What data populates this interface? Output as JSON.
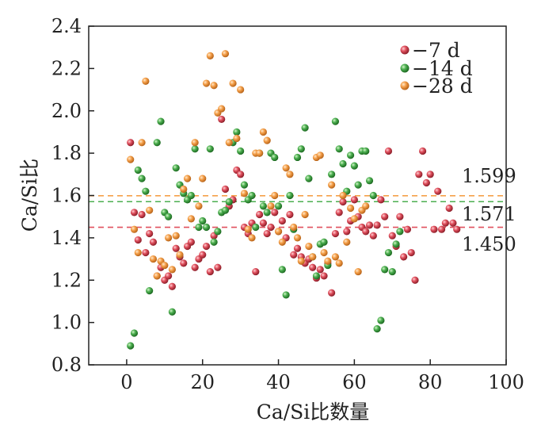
{
  "chart_data": {
    "type": "scatter",
    "title": "",
    "xlabel": "Ca/Si比数量",
    "ylabel": "Ca/Si比",
    "xlim": [
      -10,
      100
    ],
    "ylim": [
      0.8,
      2.4
    ],
    "xticks": [
      "0",
      "20",
      "40",
      "60",
      "80",
      "100"
    ],
    "yticks": [
      "0.8",
      "1.0",
      "1.2",
      "1.4",
      "1.6",
      "1.8",
      "2.0",
      "2.2",
      "2.4"
    ],
    "grid": false,
    "legend_position": "top-right",
    "reference_lines": [
      {
        "value": 1.599,
        "label": "1.599",
        "color": "#f5a04a"
      },
      {
        "value": 1.571,
        "label": "1.571",
        "color": "#4caf50"
      },
      {
        "value": 1.45,
        "label": "1.450",
        "color": "#e0505e"
      }
    ],
    "series": [
      {
        "name": "−7 d",
        "color": "#e0505e",
        "x": [
          1,
          2,
          3,
          4,
          5,
          6,
          7,
          8,
          9,
          10,
          11,
          12,
          13,
          14,
          15,
          16,
          17,
          18,
          19,
          20,
          21,
          22,
          23,
          24,
          25,
          26,
          27,
          28,
          29,
          30,
          31,
          32,
          33,
          34,
          35,
          36,
          37,
          38,
          39,
          40,
          41,
          42,
          43,
          44,
          45,
          46,
          47,
          48,
          49,
          50,
          51,
          52,
          53,
          54,
          55,
          56,
          57,
          58,
          59,
          60,
          61,
          62,
          63,
          64,
          65,
          66,
          67,
          68,
          69,
          70,
          71,
          72,
          73,
          74,
          75,
          76,
          77,
          78,
          79,
          80,
          81,
          82,
          83,
          84,
          85,
          86,
          87
        ],
        "y": [
          1.85,
          1.52,
          1.39,
          1.51,
          1.33,
          1.42,
          1.38,
          1.22,
          1.26,
          1.2,
          1.22,
          1.17,
          1.35,
          1.31,
          1.28,
          1.36,
          1.38,
          1.26,
          1.3,
          1.32,
          1.36,
          1.24,
          1.41,
          1.26,
          1.96,
          1.63,
          1.55,
          1.58,
          1.72,
          1.7,
          1.45,
          1.42,
          1.47,
          1.24,
          1.51,
          1.47,
          1.42,
          1.45,
          1.52,
          1.43,
          1.48,
          1.4,
          1.51,
          1.32,
          1.35,
          1.31,
          1.28,
          1.3,
          1.26,
          1.21,
          1.25,
          1.22,
          1.28,
          1.14,
          1.42,
          1.52,
          1.57,
          1.43,
          1.48,
          1.58,
          1.5,
          1.45,
          1.43,
          1.46,
          1.41,
          1.46,
          1.58,
          1.5,
          1.81,
          1.41,
          1.36,
          1.5,
          1.31,
          1.44,
          1.33,
          1.2,
          1.7,
          1.81,
          1.66,
          1.7,
          1.44,
          1.62,
          1.44,
          1.47,
          1.54,
          1.47,
          1.44
        ]
      },
      {
        "name": "−14 d",
        "color": "#4caf50",
        "x": [
          1,
          2,
          3,
          4,
          5,
          6,
          8,
          9,
          10,
          11,
          12,
          13,
          14,
          15,
          16,
          17,
          18,
          19,
          20,
          21,
          22,
          23,
          24,
          25,
          26,
          27,
          28,
          29,
          30,
          31,
          32,
          33,
          34,
          35,
          36,
          37,
          38,
          39,
          40,
          41,
          42,
          43,
          44,
          45,
          46,
          47,
          48,
          49,
          50,
          51,
          52,
          53,
          54,
          55,
          56,
          57,
          58,
          59,
          60,
          61,
          62,
          63,
          64,
          65,
          66,
          67,
          68,
          69,
          70,
          71,
          72
        ],
        "y": [
          0.89,
          0.95,
          1.72,
          1.68,
          1.62,
          1.15,
          1.85,
          1.95,
          1.52,
          1.5,
          1.05,
          1.73,
          1.65,
          1.61,
          1.58,
          1.6,
          1.82,
          1.45,
          1.48,
          1.45,
          1.82,
          1.38,
          1.43,
          1.52,
          1.53,
          1.57,
          1.85,
          1.9,
          1.81,
          1.65,
          1.58,
          1.6,
          1.45,
          1.8,
          1.55,
          1.52,
          1.8,
          1.78,
          1.55,
          1.25,
          1.13,
          1.6,
          1.44,
          1.78,
          1.82,
          1.92,
          1.68,
          1.31,
          1.22,
          1.37,
          1.38,
          1.27,
          1.7,
          1.95,
          1.82,
          1.75,
          1.62,
          1.79,
          1.74,
          1.65,
          1.81,
          1.81,
          1.67,
          1.6,
          0.97,
          1.01,
          1.25,
          1.33,
          1.24,
          1.37,
          1.43
        ]
      },
      {
        "name": "−28 d",
        "color": "#f5a04a",
        "x": [
          1,
          2,
          3,
          4,
          5,
          6,
          7,
          8,
          9,
          10,
          11,
          12,
          13,
          14,
          15,
          16,
          17,
          18,
          19,
          20,
          21,
          22,
          23,
          24,
          25,
          26,
          27,
          28,
          29,
          30,
          31,
          32,
          33,
          34,
          35,
          36,
          37,
          38,
          39,
          40,
          41,
          42,
          43,
          44,
          45,
          46,
          47,
          48,
          49,
          50,
          51,
          52,
          53,
          54,
          55,
          56,
          57,
          58,
          59,
          60,
          61,
          62,
          63
        ],
        "y": [
          1.77,
          1.44,
          1.33,
          1.85,
          2.14,
          1.53,
          1.3,
          1.22,
          1.29,
          1.27,
          1.4,
          1.25,
          1.41,
          1.32,
          1.63,
          1.68,
          1.49,
          1.85,
          1.55,
          1.68,
          2.13,
          2.26,
          2.12,
          1.99,
          2.01,
          2.27,
          1.85,
          2.13,
          1.87,
          2.1,
          1.61,
          1.44,
          1.4,
          1.8,
          1.8,
          1.9,
          1.86,
          1.55,
          1.6,
          1.43,
          1.38,
          1.73,
          1.7,
          1.45,
          1.4,
          1.29,
          1.51,
          1.36,
          1.31,
          1.78,
          1.79,
          1.33,
          1.29,
          1.65,
          1.31,
          1.28,
          1.6,
          1.38,
          1.54,
          1.49,
          1.24,
          1.53,
          1.55
        ]
      }
    ]
  }
}
